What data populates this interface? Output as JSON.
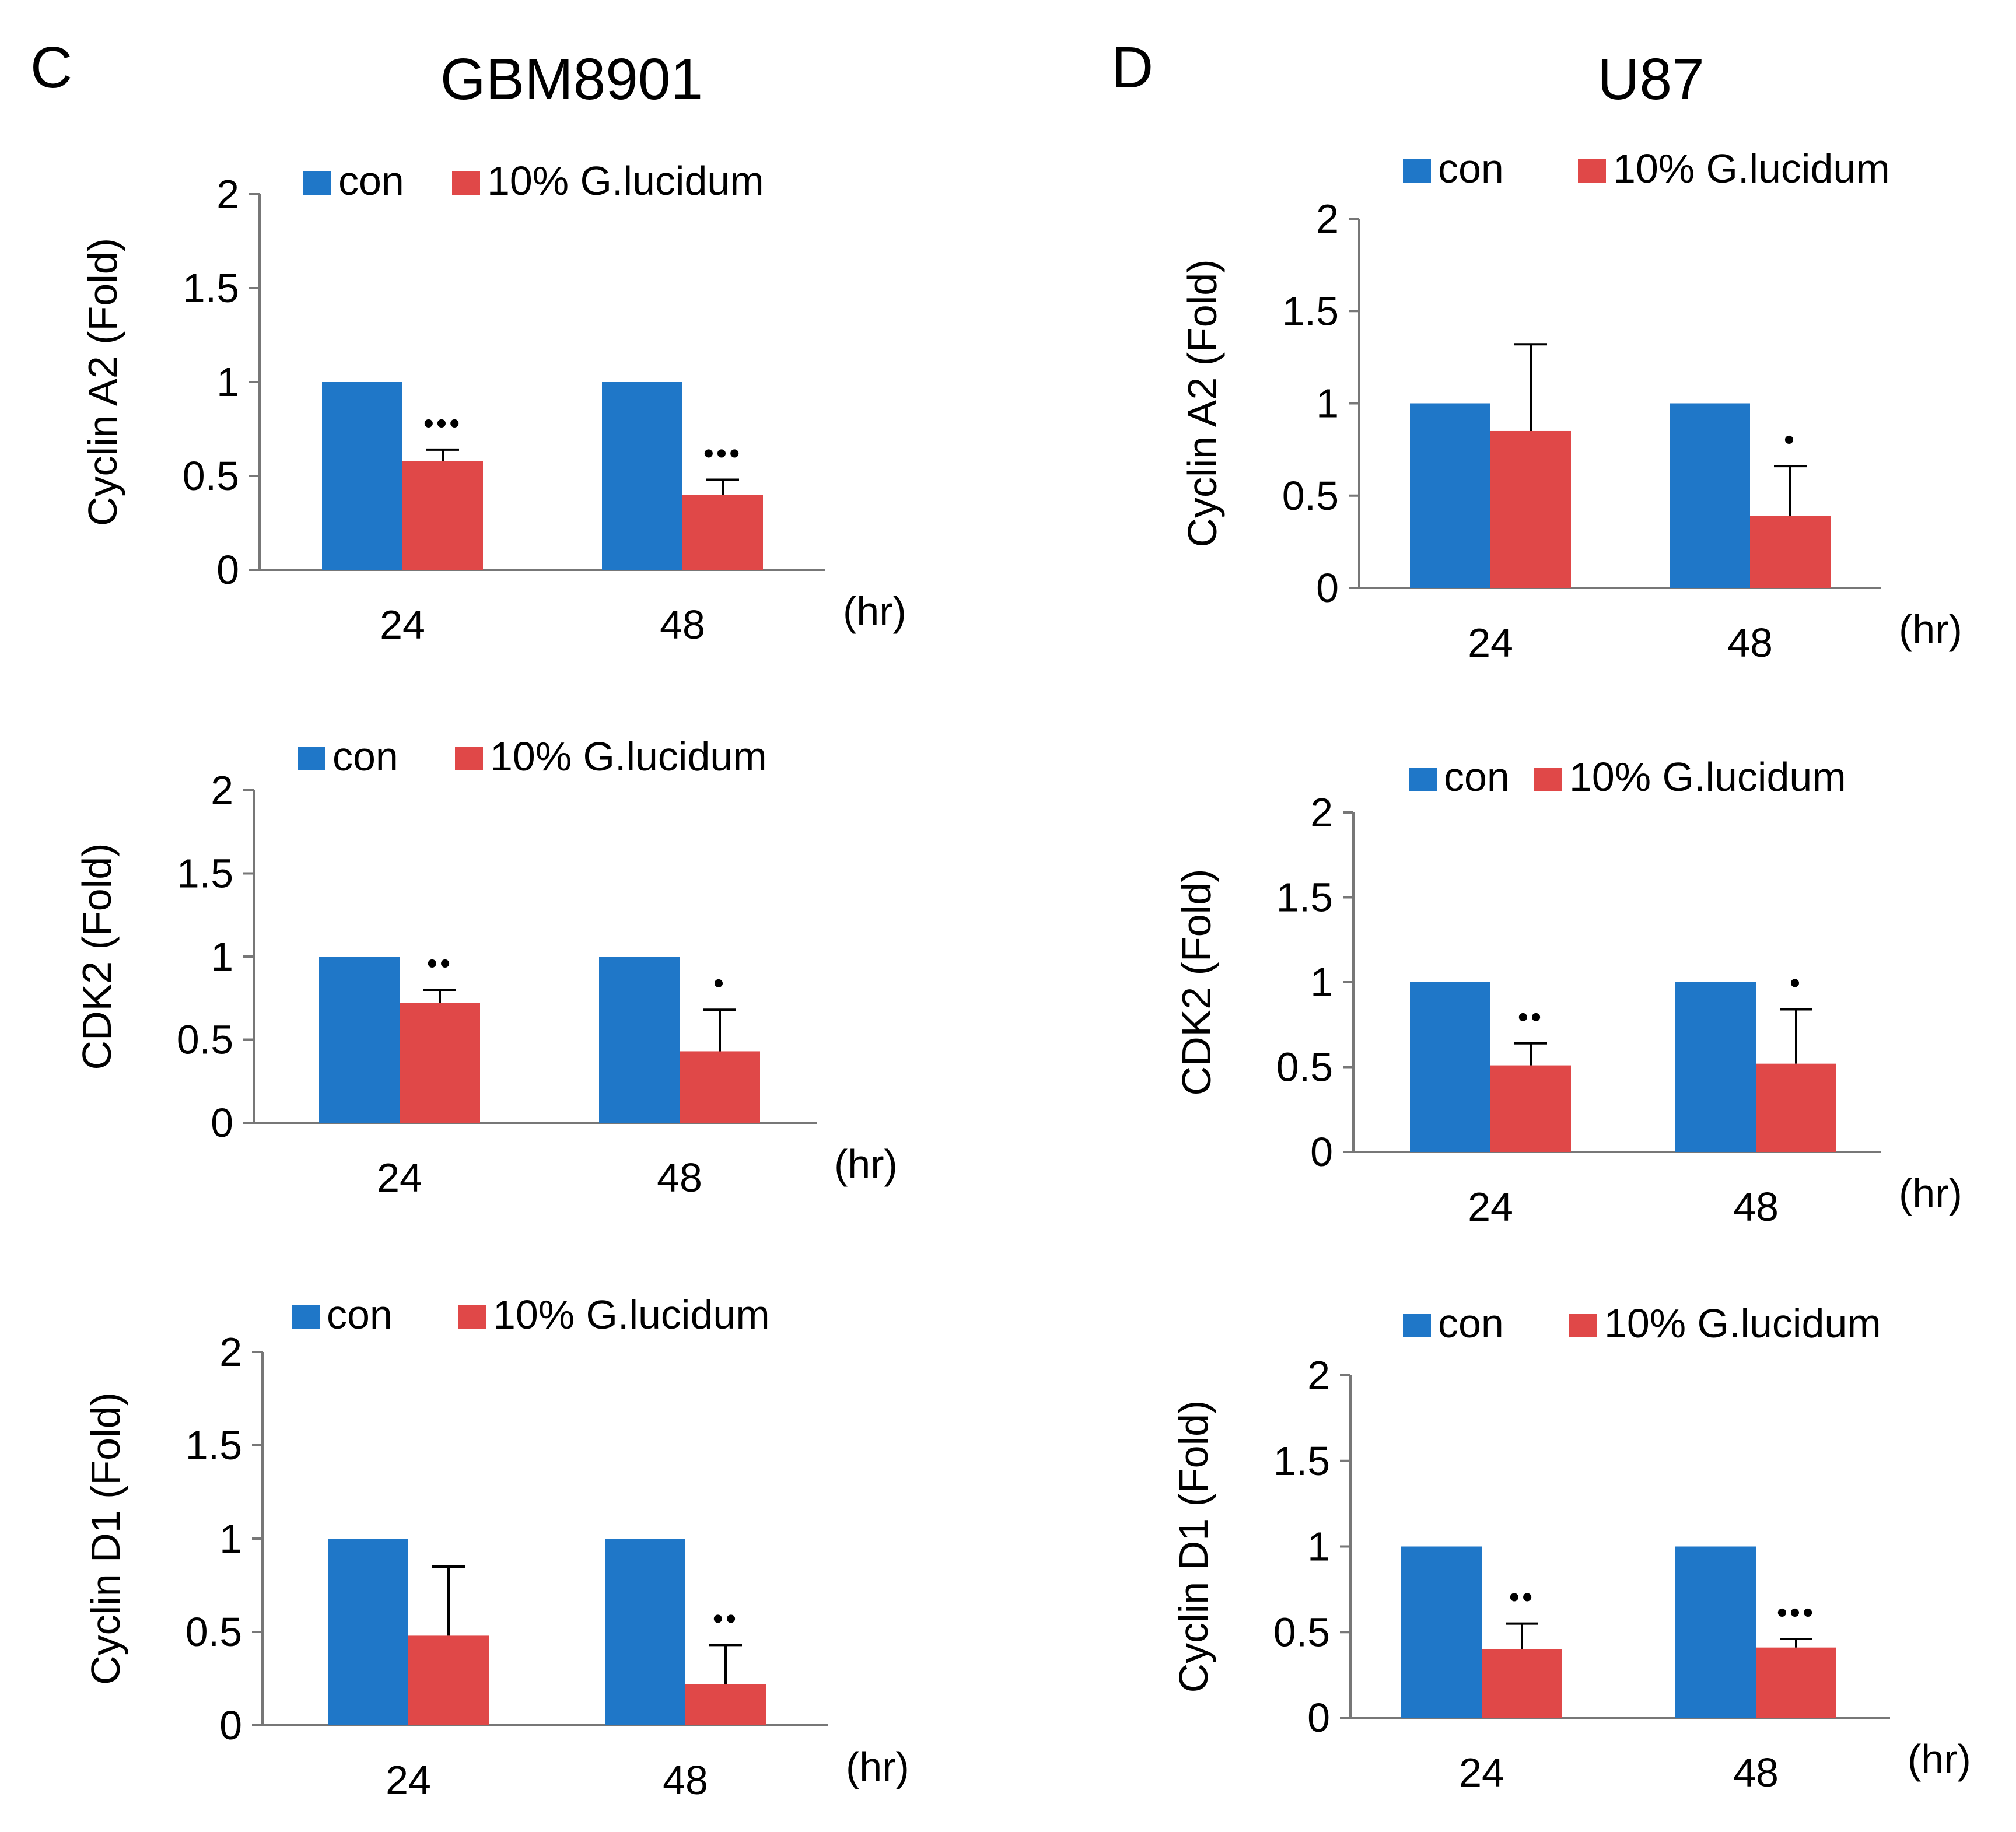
{
  "panels": [
    {
      "letter": "C",
      "title": "GBM8901"
    },
    {
      "letter": "D",
      "title": "U87"
    }
  ],
  "legend": {
    "con": "con",
    "treatment": "10% G.lucidum"
  },
  "x_unit": "(hr)",
  "colors": {
    "con": "#1f77c8",
    "treatment": "#e04848",
    "axis": "#777777"
  },
  "chart_data": [
    {
      "id": "c1",
      "panel": "C",
      "type": "bar",
      "ylabel": "Cyclin A2 (Fold)",
      "categories": [
        "24",
        "48"
      ],
      "ylim": [
        0,
        2
      ],
      "yticks": [
        "0",
        "0.5",
        "1",
        "1.5",
        "2"
      ],
      "series": [
        {
          "name": "con",
          "values": [
            1,
            1
          ],
          "errors": [
            0,
            0
          ]
        },
        {
          "name": "10% G.lucidum",
          "values": [
            0.58,
            0.4
          ],
          "errors": [
            0.06,
            0.08
          ]
        }
      ],
      "significance": [
        "•••",
        "•••"
      ]
    },
    {
      "id": "c2",
      "panel": "C",
      "type": "bar",
      "ylabel": "CDK2 (Fold)",
      "categories": [
        "24",
        "48"
      ],
      "ylim": [
        0,
        2
      ],
      "yticks": [
        "0",
        "0.5",
        "1",
        "1.5",
        "2"
      ],
      "series": [
        {
          "name": "con",
          "values": [
            1,
            1
          ],
          "errors": [
            0,
            0
          ]
        },
        {
          "name": "10% G.lucidum",
          "values": [
            0.72,
            0.43
          ],
          "errors": [
            0.08,
            0.25
          ]
        }
      ],
      "significance": [
        "••",
        "•"
      ]
    },
    {
      "id": "c3",
      "panel": "C",
      "type": "bar",
      "ylabel": "Cyclin D1 (Fold)",
      "categories": [
        "24",
        "48"
      ],
      "ylim": [
        0,
        2
      ],
      "yticks": [
        "0",
        "0.5",
        "1",
        "1.5",
        "2"
      ],
      "series": [
        {
          "name": "con",
          "values": [
            1,
            1
          ],
          "errors": [
            0,
            0
          ]
        },
        {
          "name": "10% G.lucidum",
          "values": [
            0.48,
            0.22
          ],
          "errors": [
            0.37,
            0.21
          ]
        }
      ],
      "significance": [
        "",
        "••"
      ]
    },
    {
      "id": "d1",
      "panel": "D",
      "type": "bar",
      "ylabel": "Cyclin A2 (Fold)",
      "categories": [
        "24",
        "48"
      ],
      "ylim": [
        0,
        2
      ],
      "yticks": [
        "0",
        "0.5",
        "1",
        "1.5",
        "2"
      ],
      "series": [
        {
          "name": "con",
          "values": [
            1,
            1
          ],
          "errors": [
            0,
            0
          ]
        },
        {
          "name": "10% G.lucidum",
          "values": [
            0.85,
            0.39
          ],
          "errors": [
            0.47,
            0.27
          ]
        }
      ],
      "significance": [
        "",
        "•"
      ]
    },
    {
      "id": "d2",
      "panel": "D",
      "type": "bar",
      "ylabel": "CDK2 (Fold)",
      "categories": [
        "24",
        "48"
      ],
      "ylim": [
        0,
        2
      ],
      "yticks": [
        "0",
        "0.5",
        "1",
        "1.5",
        "2"
      ],
      "series": [
        {
          "name": "con",
          "values": [
            1,
            1
          ],
          "errors": [
            0,
            0
          ]
        },
        {
          "name": "10% G.lucidum",
          "values": [
            0.51,
            0.52
          ],
          "errors": [
            0.13,
            0.32
          ]
        }
      ],
      "significance": [
        "••",
        "•"
      ]
    },
    {
      "id": "d3",
      "panel": "D",
      "type": "bar",
      "ylabel": "Cyclin D1 (Fold)",
      "categories": [
        "24",
        "48"
      ],
      "ylim": [
        0,
        2
      ],
      "yticks": [
        "0",
        "0.5",
        "1",
        "1.5",
        "2"
      ],
      "series": [
        {
          "name": "con",
          "values": [
            1,
            1
          ],
          "errors": [
            0,
            0
          ]
        },
        {
          "name": "10% G.lucidum",
          "values": [
            0.4,
            0.41
          ],
          "errors": [
            0.15,
            0.05
          ]
        }
      ],
      "significance": [
        "••",
        "•••"
      ]
    }
  ]
}
